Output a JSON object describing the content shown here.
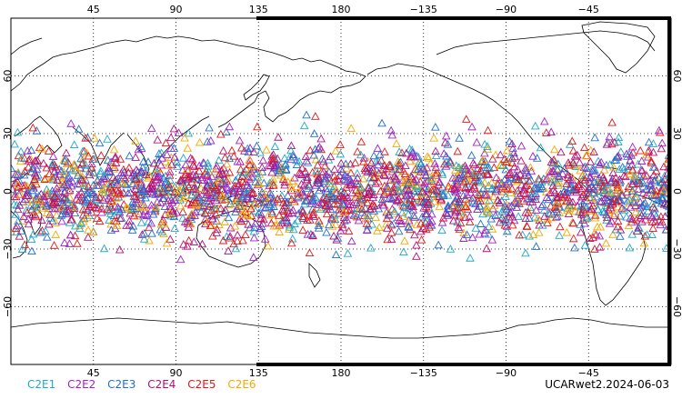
{
  "map": {
    "projection": "cylindrical equidistant, centered on 180",
    "grid": "dotted",
    "marker_shape": "open triangle",
    "lon_labels_top": [
      "45",
      "90",
      "135",
      "180",
      "−135",
      "−90",
      "−45"
    ],
    "lon_labels_bottom": [
      "45",
      "90",
      "135",
      "180",
      "−135",
      "−90",
      "−45"
    ],
    "lat_labels_left": [
      "60",
      "30",
      "0",
      "−30",
      "−60"
    ],
    "lat_labels_right": [
      "60",
      "30",
      "0",
      "−30",
      "−60"
    ],
    "lat_range": [
      -90,
      90
    ],
    "data_lat_range": [
      -45,
      45
    ]
  },
  "legend": [
    {
      "label": "C2E1",
      "color": "#1fa8c9"
    },
    {
      "label": "C2E2",
      "color": "#a020c8"
    },
    {
      "label": "C2E3",
      "color": "#1f6fd0"
    },
    {
      "label": "C2E4",
      "color": "#b0107a"
    },
    {
      "label": "C2E5",
      "color": "#e01818"
    },
    {
      "label": "C2E6",
      "color": "#f5a800"
    }
  ],
  "caption": "UCARwet2.2024-06-03"
}
